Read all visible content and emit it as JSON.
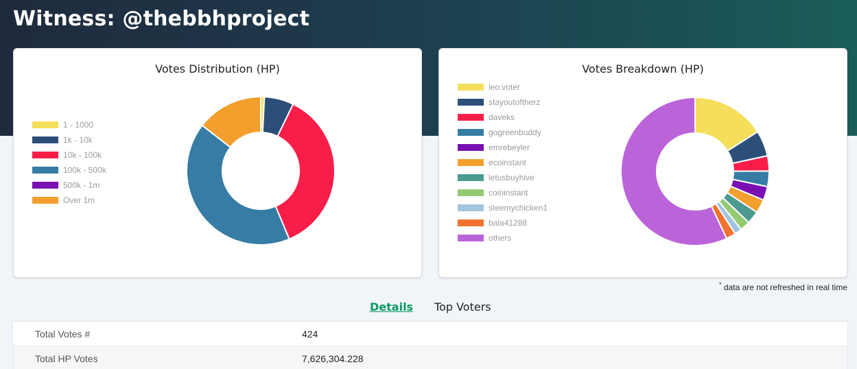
{
  "page": {
    "title": "Witness: @thebbhproject"
  },
  "chart_data": [
    {
      "type": "pie",
      "title": "Votes Distribution (HP)",
      "legend_position": "left",
      "labels": [
        "1 - 1000",
        "1k - 10k",
        "10k - 100k",
        "100k - 500k",
        "500k - 1m",
        "Over 1m"
      ],
      "values": [
        0.8,
        6.4,
        36.5,
        41.8,
        0.0,
        14.5
      ],
      "colors": [
        "#f5df5a",
        "#2c4f7a",
        "#f81e49",
        "#367ca4",
        "#7b10b2",
        "#f29f2d"
      ]
    },
    {
      "type": "pie",
      "title": "Votes Breakdown (HP)",
      "legend_position": "left",
      "labels": [
        "leo.voter",
        "stayoutoftherz",
        "daveks",
        "gogreenbuddy",
        "emrebeyler",
        "ecoinstant",
        "letusbuyhive",
        "coininstant",
        "steemychicken1",
        "bala41288",
        "others"
      ],
      "values": [
        16.0,
        5.6,
        3.3,
        3.4,
        3.0,
        3.0,
        2.8,
        2.2,
        1.6,
        2.1,
        57.0
      ],
      "colors": [
        "#f5df5a",
        "#2c4f7a",
        "#f81e49",
        "#367ca4",
        "#7b10b2",
        "#f29f2d",
        "#4d9a91",
        "#93ca72",
        "#a3c4de",
        "#f2732f",
        "#bb63d9"
      ]
    }
  ],
  "note": "data are not refreshed in real time",
  "tabs": {
    "details": "Details",
    "top_voters": "Top Voters"
  },
  "details": [
    {
      "label": "Total Votes #",
      "value": "424"
    },
    {
      "label": "Total HP Votes",
      "value": "7,626,304.228"
    }
  ]
}
